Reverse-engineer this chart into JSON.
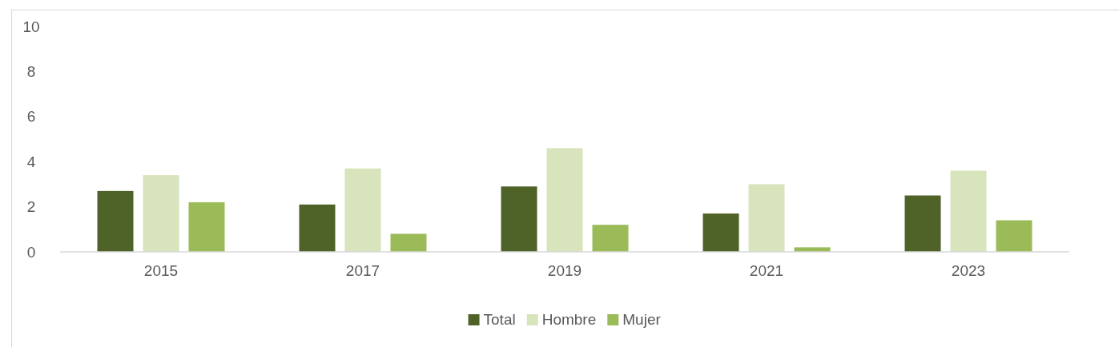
{
  "chart_data": {
    "type": "bar",
    "categories": [
      "2015",
      "2017",
      "2019",
      "2021",
      "2023"
    ],
    "series": [
      {
        "name": "Total",
        "color": "#4f6228",
        "values": [
          2.7,
          2.1,
          2.9,
          1.7,
          2.5
        ]
      },
      {
        "name": "Hombre",
        "color": "#d8e4bc",
        "values": [
          3.4,
          3.7,
          4.6,
          3.0,
          3.6
        ]
      },
      {
        "name": "Mujer",
        "color": "#9bbb59",
        "values": [
          2.2,
          0.8,
          1.2,
          0.2,
          1.4
        ]
      }
    ],
    "ylim": [
      0,
      10
    ],
    "yticks": [
      0,
      2,
      4,
      6,
      8,
      10
    ],
    "grid": false,
    "legend": "bottom"
  }
}
